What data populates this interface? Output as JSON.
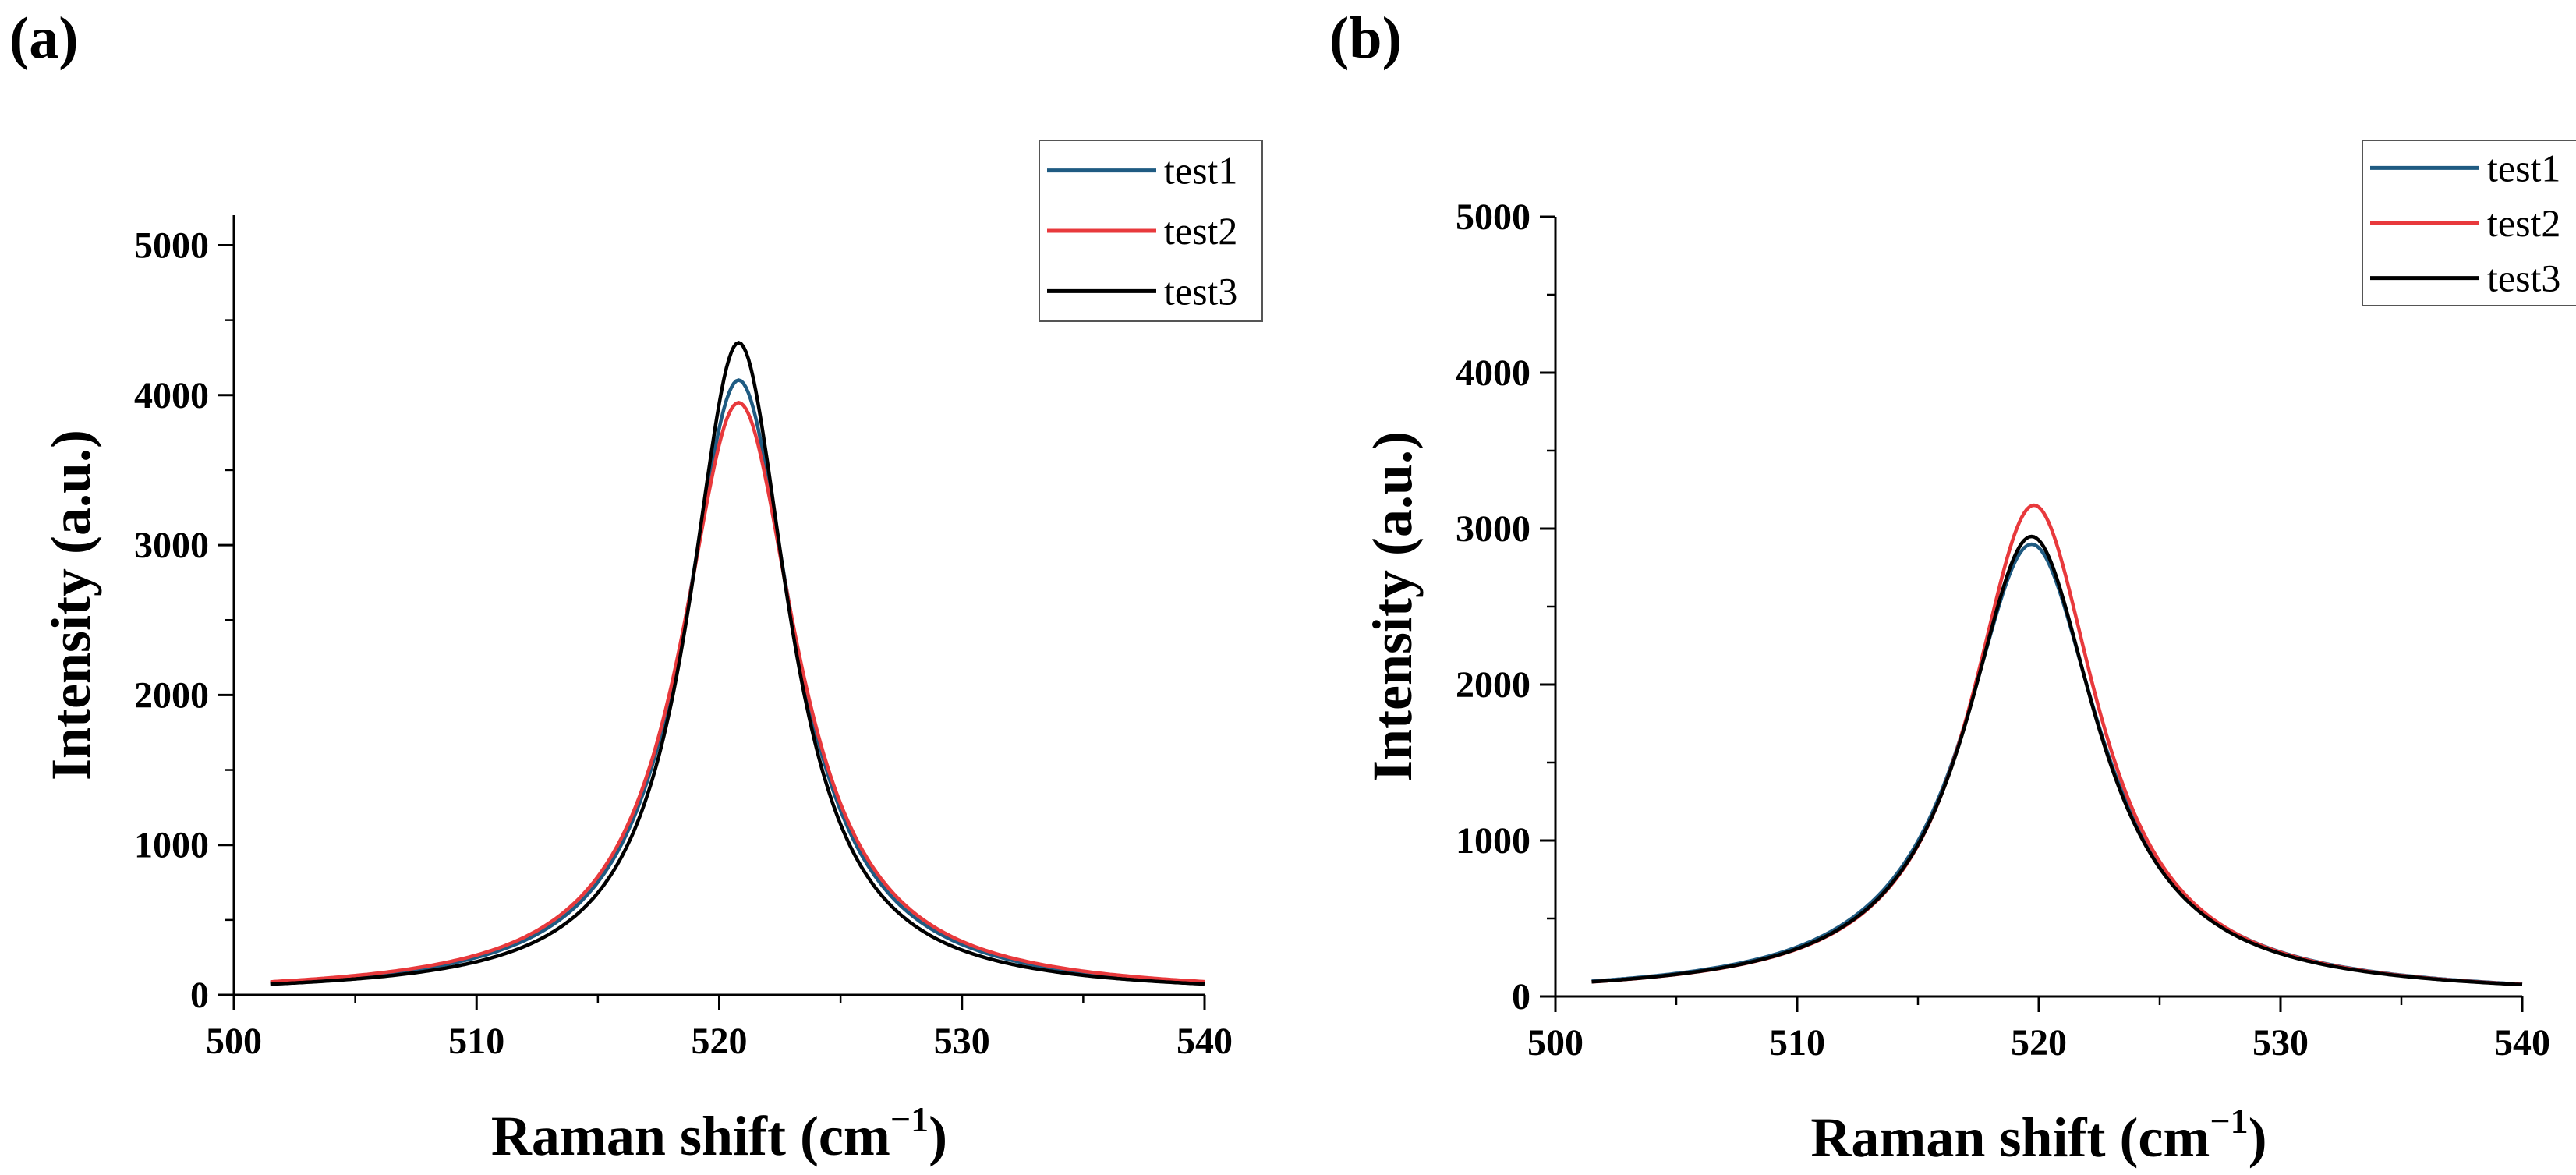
{
  "chart_data": [
    {
      "panel": "(a)",
      "type": "line",
      "xlabel": "Raman shift (cm",
      "xlabel_sup": "−1",
      "xlabel_close": ")",
      "ylabel": "Intensity (a.u.)",
      "xlim": [
        500,
        540
      ],
      "ylim": [
        0,
        5200
      ],
      "xticks": [
        500,
        510,
        520,
        530,
        540
      ],
      "yticks": [
        0,
        1000,
        2000,
        3000,
        4000,
        5000
      ],
      "x_minor_step": 5,
      "y_minor_step": 500,
      "x_range": [
        501.5,
        540
      ],
      "legend_position": "top-right",
      "series": [
        {
          "name": "test1",
          "color": "#1f5b82",
          "center": 520.8,
          "peak": 4100,
          "gamma": 2.75
        },
        {
          "name": "test2",
          "color": "#e8393c",
          "center": 520.8,
          "peak": 3950,
          "gamma": 2.9
        },
        {
          "name": "test3",
          "color": "#000000",
          "center": 520.8,
          "peak": 4350,
          "gamma": 2.5
        }
      ]
    },
    {
      "panel": "(b)",
      "type": "line",
      "xlabel": "Raman shift (cm",
      "xlabel_sup": "−1",
      "xlabel_close": ")",
      "ylabel": "Intensity (a.u.)",
      "xlim": [
        500,
        540
      ],
      "ylim": [
        0,
        5000
      ],
      "xticks": [
        500,
        510,
        520,
        530,
        540
      ],
      "yticks": [
        0,
        1000,
        2000,
        3000,
        4000,
        5000
      ],
      "x_minor_step": 5,
      "y_minor_step": 500,
      "x_range": [
        501.5,
        540
      ],
      "legend_position": "top-right",
      "series": [
        {
          "name": "test1",
          "color": "#1f5b82",
          "center": 519.7,
          "peak": 2900,
          "gamma": 3.4
        },
        {
          "name": "test2",
          "color": "#e8393c",
          "center": 519.8,
          "peak": 3150,
          "gamma": 3.2
        },
        {
          "name": "test3",
          "color": "#000000",
          "center": 519.7,
          "peak": 2950,
          "gamma": 3.3
        }
      ]
    }
  ]
}
